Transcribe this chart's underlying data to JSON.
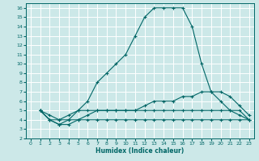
{
  "xlabel": "Humidex (Indice chaleur)",
  "ylabel": "",
  "bg_color": "#cce8e8",
  "grid_color": "#ffffff",
  "line_color": "#006666",
  "xlim": [
    -0.5,
    23.5
  ],
  "ylim": [
    2,
    16.5
  ],
  "xticks": [
    0,
    1,
    2,
    3,
    4,
    5,
    6,
    7,
    8,
    9,
    10,
    11,
    12,
    13,
    14,
    15,
    16,
    17,
    18,
    19,
    20,
    21,
    22,
    23
  ],
  "yticks": [
    2,
    3,
    4,
    5,
    6,
    7,
    8,
    9,
    10,
    11,
    12,
    13,
    14,
    15,
    16
  ],
  "line1_x": [
    1,
    2,
    3,
    4,
    5,
    6,
    7,
    8,
    9,
    10,
    11,
    12,
    13,
    14,
    15,
    16,
    17,
    18,
    19,
    20,
    21,
    22,
    23
  ],
  "line1_y": [
    5,
    4,
    3.5,
    4,
    5,
    6,
    8,
    9,
    10,
    11,
    13,
    15,
    16,
    16,
    16,
    16,
    14,
    10,
    7,
    6,
    5,
    5,
    4
  ],
  "line2_x": [
    1,
    2,
    3,
    4,
    5,
    6,
    7,
    8,
    9,
    10,
    11,
    12,
    13,
    14,
    15,
    16,
    17,
    18,
    19,
    20,
    21,
    22,
    23
  ],
  "line2_y": [
    5,
    4,
    4,
    4.5,
    5,
    5,
    5,
    5,
    5,
    5,
    5,
    5.5,
    6,
    6,
    6,
    6.5,
    6.5,
    7,
    7,
    7,
    6.5,
    5.5,
    4.5
  ],
  "line3_x": [
    1,
    2,
    3,
    4,
    5,
    6,
    7,
    8,
    9,
    10,
    11,
    12,
    13,
    14,
    15,
    16,
    17,
    18,
    19,
    20,
    21,
    22,
    23
  ],
  "line3_y": [
    5,
    4,
    3.5,
    3.5,
    4,
    4.5,
    5,
    5,
    5,
    5,
    5,
    5,
    5,
    5,
    5,
    5,
    5,
    5,
    5,
    5,
    5,
    4.5,
    4
  ],
  "line4_x": [
    1,
    2,
    3,
    4,
    5,
    6,
    7,
    8,
    9,
    10,
    11,
    12,
    13,
    14,
    15,
    16,
    17,
    18,
    19,
    20,
    21,
    22,
    23
  ],
  "line4_y": [
    5,
    4.5,
    4,
    4,
    4,
    4,
    4,
    4,
    4,
    4,
    4,
    4,
    4,
    4,
    4,
    4,
    4,
    4,
    4,
    4,
    4,
    4,
    4
  ]
}
